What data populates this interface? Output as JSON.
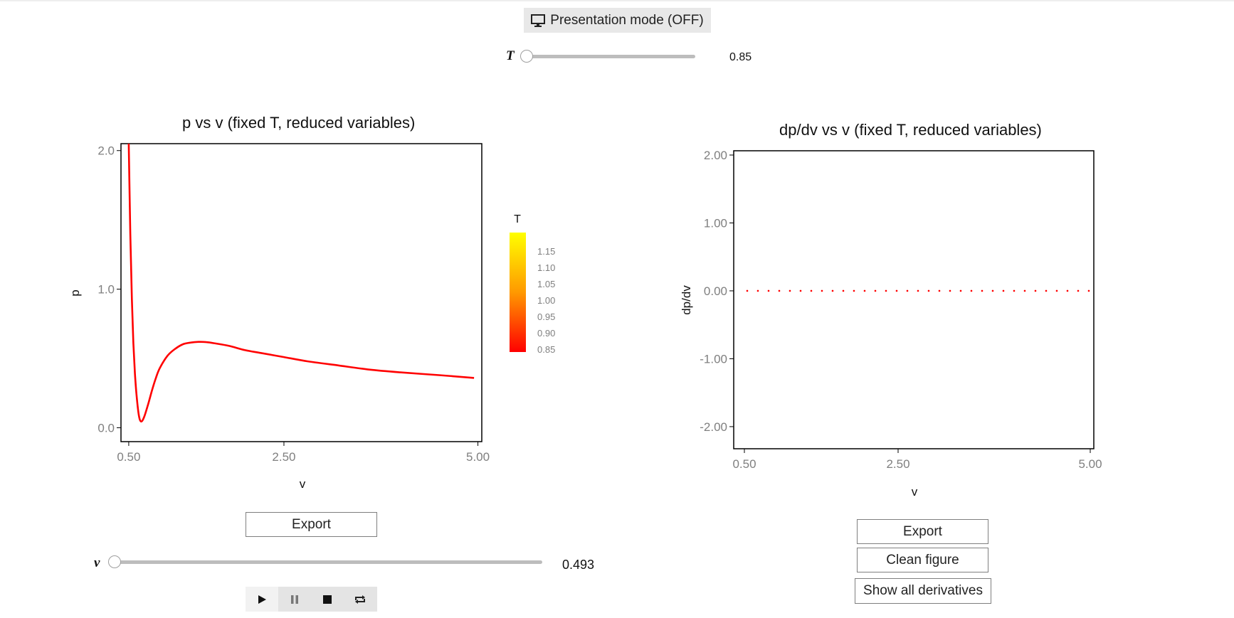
{
  "header": {
    "presentation_label": "Presentation mode (OFF)",
    "presentation_icon": "monitor-icon"
  },
  "t_slider": {
    "label": "T",
    "value": "0.85",
    "min": 0.85,
    "max": 1.15,
    "fraction": 0
  },
  "v_slider": {
    "label": "v",
    "value": "0.493",
    "fraction": 0
  },
  "player": {
    "play_icon": "play-icon",
    "pause_icon": "pause-icon",
    "stop_icon": "stop-icon",
    "loop_icon": "loop-icon"
  },
  "left_panel": {
    "export_label": "Export"
  },
  "right_panel": {
    "export_label": "Export",
    "clean_label": "Clean figure",
    "derivatives_label": "Show all derivatives"
  },
  "colors": {
    "curve": "#ff0000",
    "colorbar_top": "#ffff00",
    "colorbar_bottom": "#ff0000",
    "axis": "#000000",
    "tick_text": "#7f7f7f"
  },
  "chart_data": [
    {
      "type": "line",
      "title": "p vs v (fixed T, reduced variables)",
      "xlabel": "v",
      "ylabel": "p",
      "xlim": [
        0.4,
        5.05
      ],
      "ylim": [
        -0.1,
        2.05
      ],
      "xticks": [
        0.5,
        2.5,
        5.0
      ],
      "xtick_labels": [
        "0.50",
        "2.50",
        "5.00"
      ],
      "yticks": [
        0.0,
        1.0,
        2.0
      ],
      "ytick_labels": [
        "0.0",
        "1.0",
        "2.0"
      ],
      "grid": false,
      "series": [
        {
          "color": "#ff0000",
          "x": [
            0.5,
            0.52,
            0.54,
            0.56,
            0.58,
            0.6,
            0.63,
            0.66,
            0.7,
            0.75,
            0.8,
            0.85,
            0.9,
            1.0,
            1.1,
            1.2,
            1.3,
            1.4,
            1.5,
            1.6,
            1.8,
            2.0,
            2.2,
            2.5,
            2.8,
            3.2,
            3.6,
            4.0,
            4.5,
            4.95
          ],
          "y": [
            2.05,
            1.4,
            0.93,
            0.61,
            0.39,
            0.24,
            0.09,
            0.045,
            0.08,
            0.17,
            0.27,
            0.36,
            0.43,
            0.52,
            0.57,
            0.603,
            0.615,
            0.62,
            0.618,
            0.61,
            0.59,
            0.56,
            0.54,
            0.51,
            0.48,
            0.45,
            0.42,
            0.4,
            0.38,
            0.36
          ]
        }
      ],
      "colorbar": {
        "title": "T",
        "ticks": [
          0.85,
          0.9,
          0.95,
          1.0,
          1.05,
          1.1,
          1.15
        ],
        "tick_labels": [
          "0.85",
          "0.90",
          "0.95",
          "1.00",
          "1.05",
          "1.10",
          "1.15"
        ],
        "range": [
          0.85,
          1.15
        ]
      }
    },
    {
      "type": "line",
      "title": "dp/dv vs v (fixed T, reduced variables)",
      "xlabel": "v",
      "ylabel": "dp/dv",
      "xlim": [
        0.5,
        5.0
      ],
      "ylim": [
        -2.1,
        2.1
      ],
      "xticks": [
        0.5,
        2.5,
        5.0
      ],
      "xtick_labels": [
        "0.50",
        "2.50",
        "5.00"
      ],
      "yticks": [
        -2.0,
        -1.0,
        0.0,
        1.0,
        2.0
      ],
      "ytick_labels": [
        "-2.00",
        "-1.00",
        "0.00",
        "1.00",
        "2.00"
      ],
      "grid": false,
      "series": [
        {
          "color": "#ff0000",
          "style": "dotted",
          "x": [
            0.5,
            5.0
          ],
          "y": [
            0.0,
            0.0
          ]
        }
      ]
    }
  ]
}
